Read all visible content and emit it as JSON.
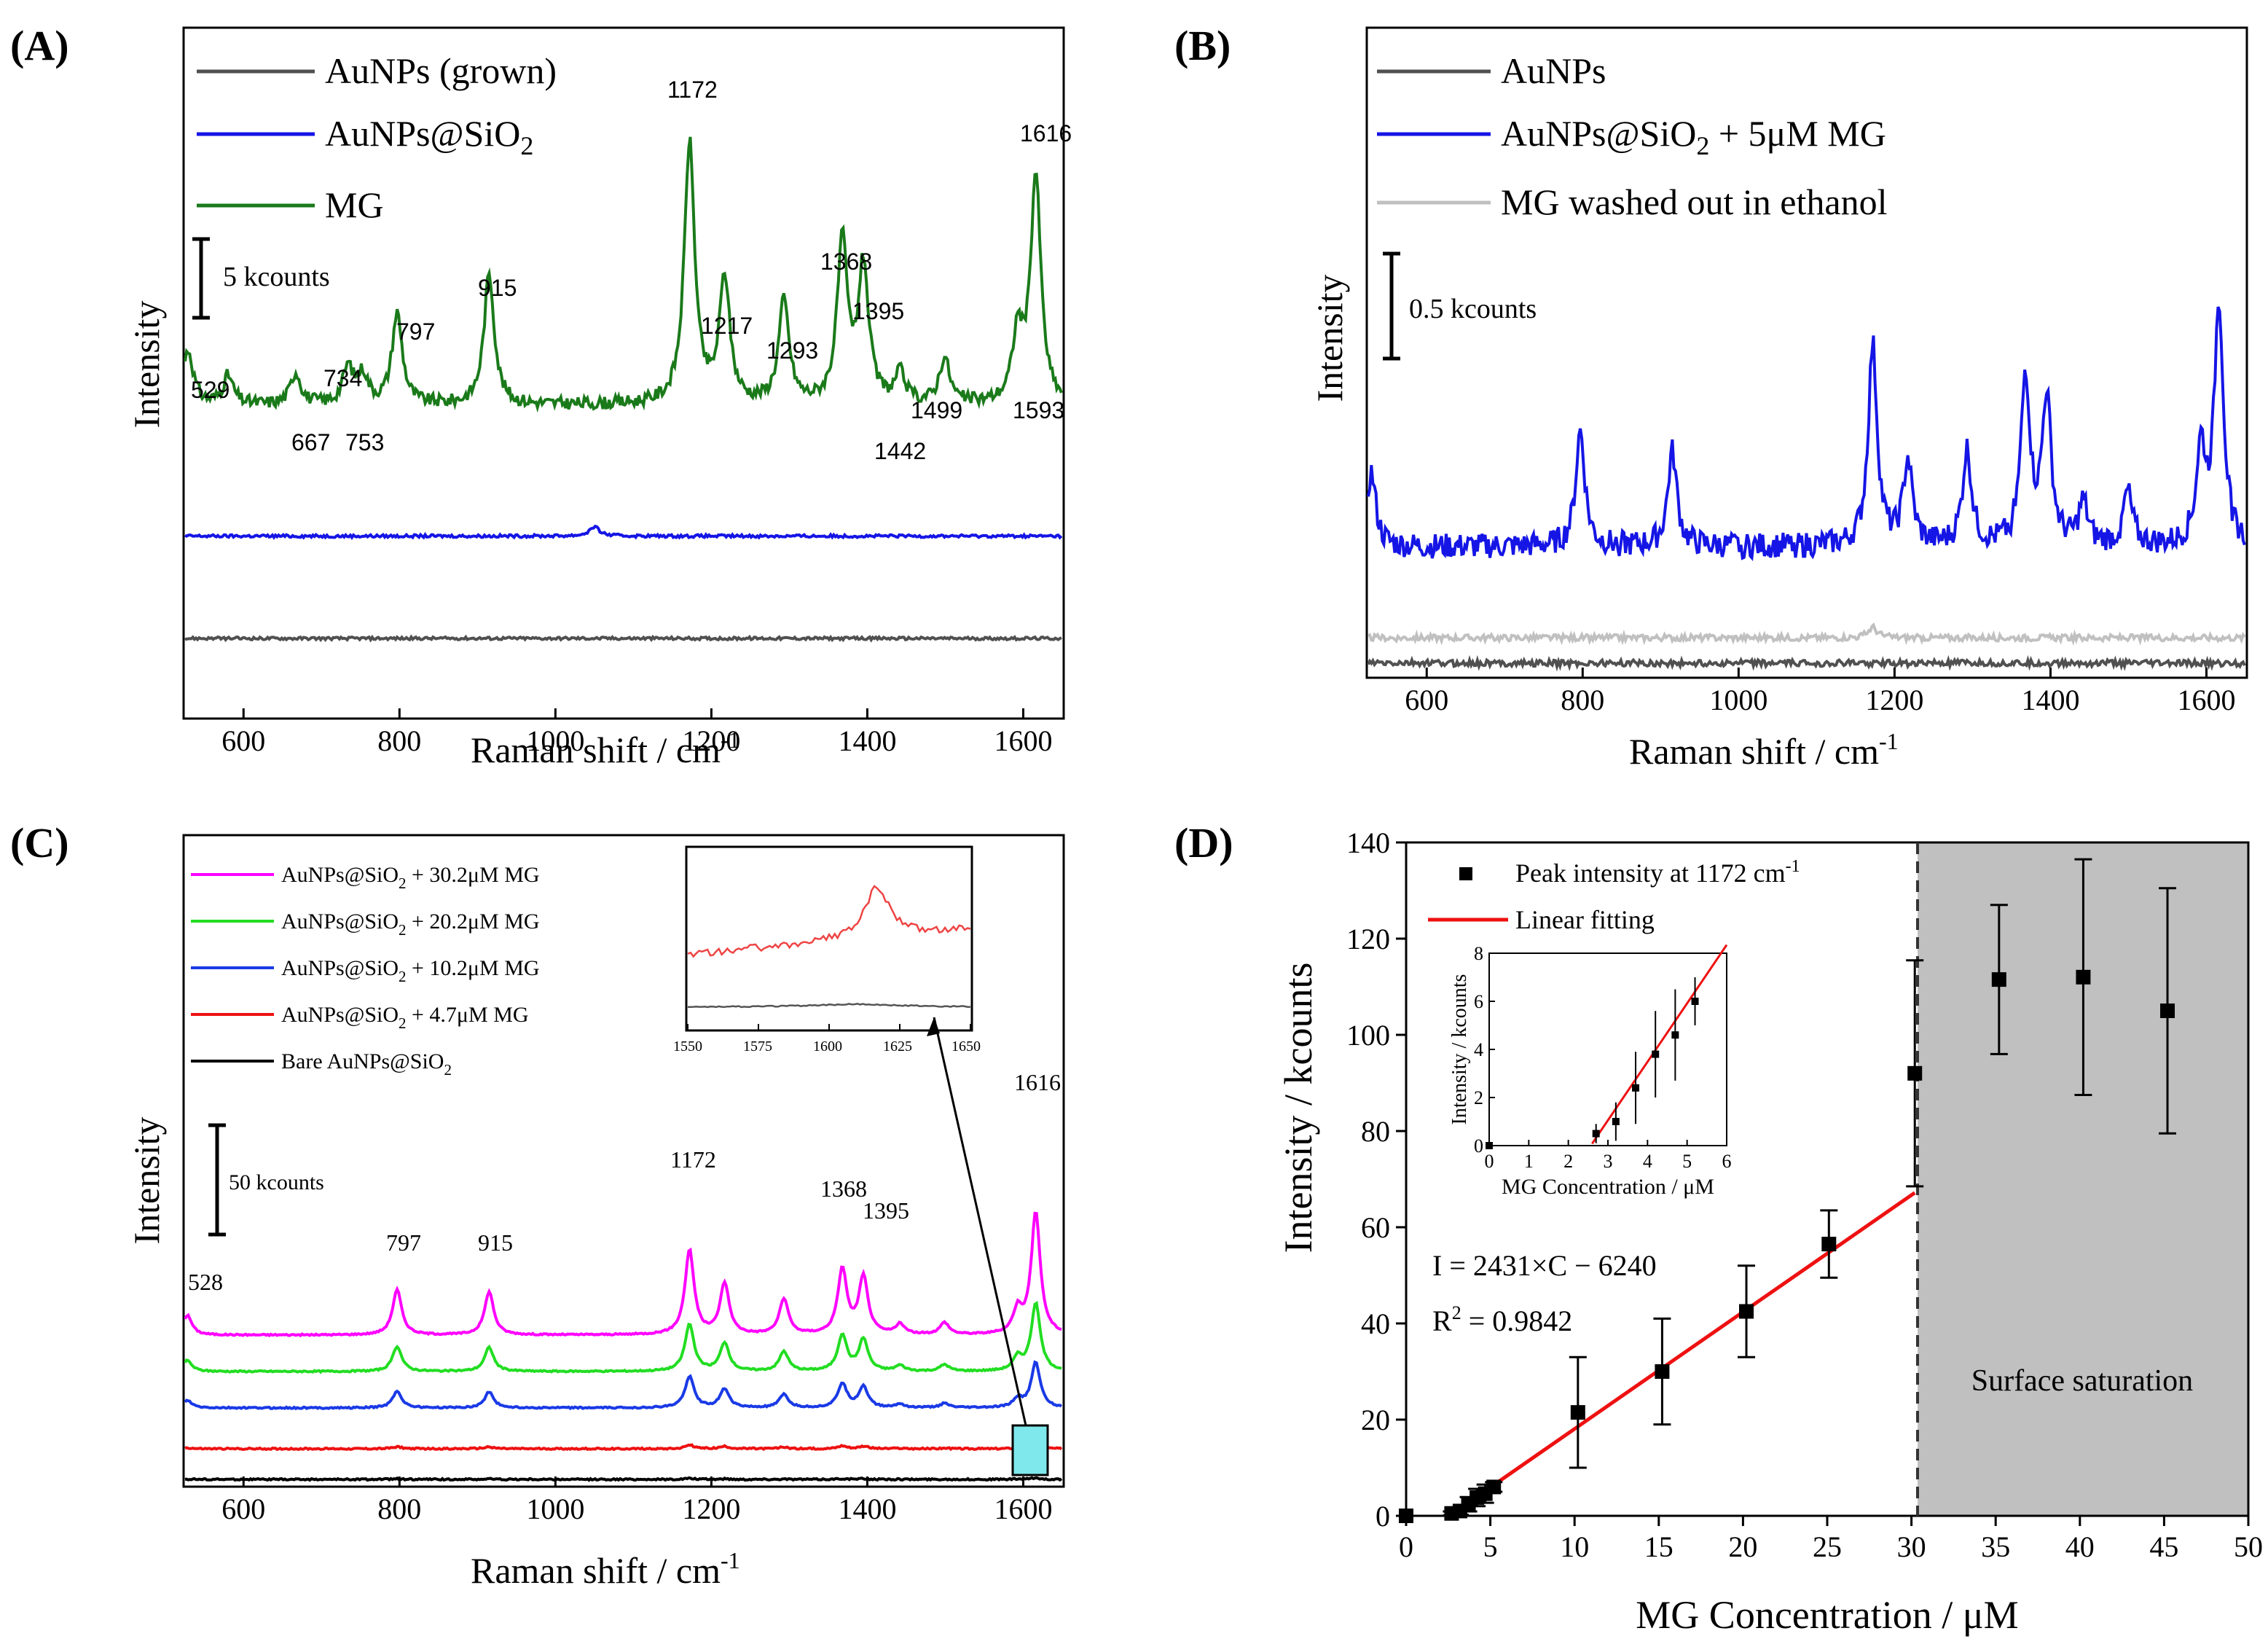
{
  "chart_data": [
    {
      "id": "A",
      "panel_label": "(A)",
      "type": "line",
      "xlabel": "Raman shift / cm",
      "xlabel_sup": "-1",
      "ylabel": "Intensity",
      "xlim": [
        525,
        1650
      ],
      "xticks": [
        600,
        800,
        1000,
        1200,
        1400,
        1600
      ],
      "scale_bar": "5 kcounts",
      "legend": [
        {
          "label": "AuNPs (grown)",
          "color": "#505050"
        },
        {
          "label": "AuNPs@SiO",
          "sub": "2",
          "color": "#1515e6"
        },
        {
          "label": "MG",
          "color": "#1a7a1a"
        }
      ],
      "series": [
        {
          "name": "MG",
          "color": "#1a7a1a",
          "baseline_kcounts": 20.5,
          "peaks": [
            [
              529,
              4.8
            ],
            [
              580,
              2.5
            ],
            [
              667,
              2.8
            ],
            [
              734,
              3.2
            ],
            [
              753,
              2.5
            ],
            [
              797,
              8
            ],
            [
              915,
              11.5
            ],
            [
              1172,
              23
            ],
            [
              1217,
              11
            ],
            [
              1293,
              9
            ],
            [
              1368,
              14
            ],
            [
              1395,
              12
            ],
            [
              1442,
              2.5
            ],
            [
              1499,
              4
            ],
            [
              1593,
              6
            ],
            [
              1616,
              20
            ]
          ]
        },
        {
          "name": "AuNPs@SiO2",
          "color": "#1515e6",
          "baseline_kcounts": 9,
          "peaks": [
            [
              1050,
              0.8
            ]
          ]
        },
        {
          "name": "AuNPs (grown)",
          "color": "#505050",
          "baseline_kcounts": 0,
          "peaks": []
        }
      ],
      "peak_labels": [
        "529",
        "667",
        "734",
        "753",
        "797",
        "915",
        "1172",
        "1217",
        "1293",
        "1368",
        "1395",
        "1442",
        "1499",
        "1593",
        "1616"
      ]
    },
    {
      "id": "B",
      "panel_label": "(B)",
      "type": "line",
      "xlabel": "Raman shift / cm",
      "xlabel_sup": "-1",
      "ylabel": "Intensity",
      "xlim": [
        525,
        1650
      ],
      "xticks": [
        600,
        800,
        1000,
        1200,
        1400,
        1600
      ],
      "scale_bar": "0.5 kcounts",
      "legend": [
        {
          "label": "AuNPs",
          "color": "#505050"
        },
        {
          "label": "AuNPs@SiO",
          "sub": "2",
          "suffix": " + 5μM MG",
          "color": "#1515e6"
        },
        {
          "label": "MG washed out in ethanol",
          "color": "#c0c0c0"
        }
      ],
      "series": [
        {
          "name": "AuNPs@SiO2 + 5μM MG",
          "color": "#1515e6",
          "baseline_kcounts": 0.55,
          "peaks": [
            [
              529,
              0.35
            ],
            [
              797,
              0.55
            ],
            [
              915,
              0.45
            ],
            [
              1172,
              0.95
            ],
            [
              1217,
              0.4
            ],
            [
              1293,
              0.45
            ],
            [
              1368,
              0.8
            ],
            [
              1395,
              0.7
            ],
            [
              1442,
              0.2
            ],
            [
              1499,
              0.25
            ],
            [
              1593,
              0.45
            ],
            [
              1616,
              1.15
            ]
          ]
        },
        {
          "name": "MG washed out in ethanol",
          "color": "#c0c0c0",
          "baseline_kcounts": 0.12,
          "peaks": [
            [
              1172,
              0.05
            ]
          ]
        },
        {
          "name": "AuNPs",
          "color": "#505050",
          "baseline_kcounts": 0,
          "peaks": []
        }
      ]
    },
    {
      "id": "C",
      "panel_label": "(C)",
      "type": "line",
      "xlabel": "Raman shift / cm",
      "xlabel_sup": "-1",
      "ylabel": "Intensity",
      "xlim": [
        525,
        1650
      ],
      "xticks": [
        600,
        800,
        1000,
        1200,
        1400,
        1600
      ],
      "scale_bar": "50 kcounts",
      "legend": [
        {
          "label": "AuNPs@SiO",
          "sub": "2",
          "suffix": " + 30.2μM MG",
          "color": "#ff00ff"
        },
        {
          "label": "AuNPs@SiO",
          "sub": "2",
          "suffix": " + 20.2μM MG",
          "color": "#22dd22"
        },
        {
          "label": "AuNPs@SiO",
          "sub": "2",
          "suffix": " + 10.2μM MG",
          "color": "#1a3ae6"
        },
        {
          "label": "AuNPs@SiO",
          "sub": "2",
          "suffix": " +   4.7μM MG",
          "color": "#ee1111"
        },
        {
          "label": "Bare AuNPs@SiO",
          "sub": "2",
          "color": "#000000"
        }
      ],
      "peak_labels": [
        "528",
        "797",
        "915",
        "1172",
        "1368",
        "1395",
        "1616"
      ],
      "inset": {
        "xlim": [
          1550,
          1650
        ],
        "xticks": [
          "1550",
          "1575",
          "1600",
          "1625",
          "1650"
        ]
      }
    },
    {
      "id": "D",
      "panel_label": "(D)",
      "type": "scatter",
      "xlabel": "MG Concentration / μM",
      "ylabel": "Intensity / kcounts",
      "xlim": [
        0,
        50
      ],
      "ylim": [
        0,
        140
      ],
      "xticks": [
        0,
        5,
        10,
        15,
        20,
        25,
        30,
        35,
        40,
        45,
        50
      ],
      "yticks": [
        0,
        20,
        40,
        60,
        80,
        100,
        120,
        140
      ],
      "legend": [
        {
          "label": "Peak intensity at 1172 cm",
          "sup": "-1",
          "marker": "square"
        },
        {
          "label": "Linear fitting",
          "marker": "line",
          "color": "#ee1111"
        }
      ],
      "equation": "I = 2431×C − 6240",
      "r2_label": "R",
      "r2_sup": "2",
      "r2_value": " = 0.9842",
      "saturation_label": "Surface saturation",
      "saturation_start": 30.2,
      "fit": {
        "slope": 2.431,
        "intercept": -6.24,
        "x_range": [
          2.6,
          30.2
        ]
      },
      "points": [
        {
          "x": 0,
          "y": 0,
          "err": 0
        },
        {
          "x": 2.7,
          "y": 0.5,
          "err": 0.4
        },
        {
          "x": 3.2,
          "y": 1.0,
          "err": 0.8
        },
        {
          "x": 3.7,
          "y": 2.4,
          "err": 1.5
        },
        {
          "x": 4.2,
          "y": 3.8,
          "err": 1.8
        },
        {
          "x": 4.7,
          "y": 4.6,
          "err": 1.9
        },
        {
          "x": 5.2,
          "y": 6.0,
          "err": 1.0
        },
        {
          "x": 10.2,
          "y": 21.5,
          "err": 11.5
        },
        {
          "x": 15.2,
          "y": 30,
          "err": 11
        },
        {
          "x": 20.2,
          "y": 42.5,
          "err": 9.5
        },
        {
          "x": 25.1,
          "y": 56.5,
          "err": 7
        },
        {
          "x": 30.2,
          "y": 92,
          "err": 23.5
        },
        {
          "x": 35.2,
          "y": 111.5,
          "err": 15.5
        },
        {
          "x": 40.2,
          "y": 112,
          "err": 24.5
        },
        {
          "x": 45.2,
          "y": 105,
          "err": 25.5
        }
      ],
      "inset": {
        "xlabel": "MG Concentration / μM",
        "ylabel": "Intensity / kcounts",
        "xlim": [
          0,
          6
        ],
        "ylim": [
          0,
          8
        ],
        "xticks": [
          0,
          1,
          2,
          3,
          4,
          5,
          6
        ],
        "yticks": [
          0,
          2,
          4,
          6,
          8
        ]
      }
    }
  ]
}
